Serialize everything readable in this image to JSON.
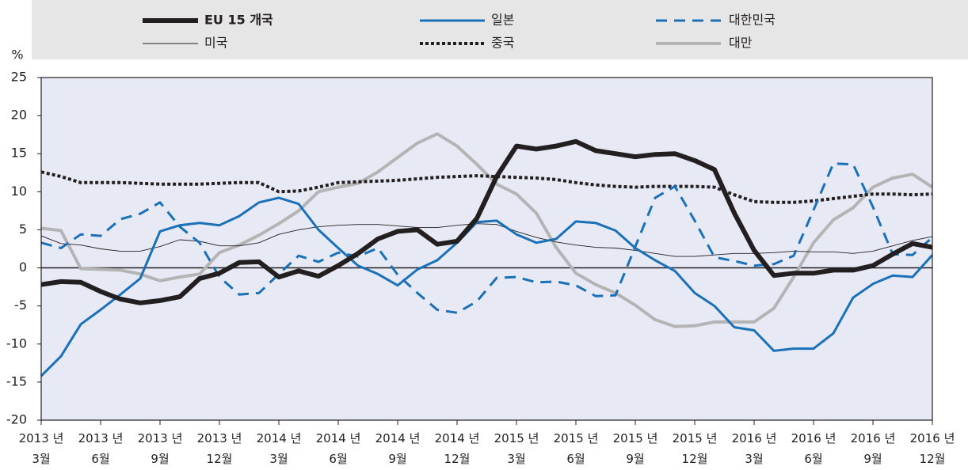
{
  "chart_data": {
    "type": "line",
    "y_unit": "%",
    "categories": [
      "2013 년\n3월",
      null,
      null,
      "2013 년\n6월",
      null,
      null,
      "2013 년\n9월",
      null,
      null,
      "2013 년\n12월",
      null,
      null,
      "2014 년\n3월",
      null,
      null,
      "2014 년\n6월",
      null,
      null,
      "2014 년\n9월",
      null,
      null,
      "2014 년\n12월",
      null,
      null,
      "2015 년\n3월",
      null,
      null,
      "2015 년\n6월",
      null,
      null,
      "2015 년\n9월",
      null,
      null,
      "2015 년\n12월",
      null,
      null,
      "2016 년\n3월",
      null,
      null,
      "2016 년\n6월",
      null,
      null,
      "2016 년\n9월",
      null,
      null,
      "2016 년\n12월"
    ],
    "series": [
      {
        "name": "EU 15 개국",
        "color": "#231f20",
        "style": "heavy",
        "values": [
          -2.2,
          -1.8,
          -1.9,
          -3.1,
          -4.1,
          -4.6,
          -4.3,
          -3.8,
          -1.4,
          -0.7,
          0.7,
          0.8,
          -1.2,
          -0.4,
          -1.1,
          0.3,
          1.9,
          3.8,
          4.8,
          5.0,
          3.1,
          3.5,
          6.5,
          12.0,
          16.0,
          15.6,
          16.0,
          16.6,
          15.4,
          15.0,
          14.6,
          14.9,
          15.0,
          14.1,
          12.9,
          7.2,
          2.3,
          -1.0,
          -0.7,
          -0.7,
          -0.3,
          -0.3,
          0.3,
          1.8,
          3.2,
          2.7
        ]
      },
      {
        "name": "일본",
        "color": "#1a71b8",
        "style": "solid",
        "values": [
          -14.2,
          -11.6,
          -7.4,
          -5.5,
          -3.5,
          -1.4,
          4.8,
          5.6,
          5.9,
          5.6,
          6.8,
          8.6,
          9.2,
          8.4,
          5.0,
          2.6,
          0.3,
          -0.8,
          -2.3,
          -0.2,
          1.0,
          3.3,
          6.0,
          6.2,
          4.4,
          3.3,
          3.8,
          6.1,
          5.9,
          4.9,
          2.6,
          1.0,
          -0.4,
          -3.3,
          -5.0,
          -7.8,
          -8.2,
          -10.9,
          -10.6,
          -10.6,
          -8.6,
          -3.9,
          -2.1,
          -1.0,
          -1.2,
          1.7
        ]
      },
      {
        "name": "대한민국",
        "color": "#1a71b8",
        "style": "dashed",
        "values": [
          3.3,
          2.6,
          4.4,
          4.2,
          6.4,
          7.1,
          8.6,
          5.4,
          3.3,
          -1.2,
          -3.5,
          -3.3,
          -0.8,
          1.6,
          0.8,
          2.0,
          1.5,
          2.6,
          -0.9,
          -3.3,
          -5.5,
          -5.9,
          -4.4,
          -1.3,
          -1.2,
          -1.9,
          -1.8,
          -2.3,
          -3.7,
          -3.6,
          2.8,
          9.2,
          10.7,
          6.2,
          1.4,
          0.9,
          0.3,
          0.5,
          1.6,
          7.6,
          13.7,
          13.6,
          8.0,
          1.8,
          1.7,
          4.0
        ]
      },
      {
        "name": "미국",
        "color": "#231f20",
        "style": "thin",
        "values": [
          4.2,
          3.2,
          3.0,
          2.5,
          2.2,
          2.2,
          2.8,
          3.7,
          3.5,
          2.9,
          2.9,
          3.3,
          4.4,
          5.0,
          5.4,
          5.6,
          5.7,
          5.7,
          5.5,
          5.3,
          5.3,
          5.6,
          5.8,
          5.7,
          4.8,
          4.0,
          3.4,
          3.0,
          2.7,
          2.6,
          2.3,
          1.9,
          1.5,
          1.5,
          1.7,
          1.9,
          1.9,
          2.0,
          2.2,
          2.1,
          2.1,
          1.9,
          2.2,
          2.9,
          3.6,
          4.1
        ]
      },
      {
        "name": "중국",
        "color": "#231f20",
        "style": "dotted",
        "values": [
          12.6,
          12.0,
          11.2,
          11.2,
          11.2,
          11.1,
          11.0,
          11.0,
          11.0,
          11.1,
          11.2,
          11.2,
          10.0,
          10.1,
          10.6,
          11.2,
          11.3,
          11.4,
          11.5,
          11.7,
          11.9,
          12.0,
          12.1,
          12.0,
          11.9,
          11.8,
          11.6,
          11.2,
          10.9,
          10.7,
          10.6,
          10.7,
          10.7,
          10.7,
          10.6,
          9.6,
          8.7,
          8.6,
          8.6,
          8.8,
          9.1,
          9.4,
          9.7,
          9.7,
          9.6,
          9.7
        ]
      },
      {
        "name": "대만",
        "color": "#b4b4b4",
        "style": "wide",
        "values": [
          5.2,
          4.9,
          -0.1,
          -0.2,
          -0.3,
          -0.8,
          -1.7,
          -1.2,
          -0.8,
          2.0,
          3.0,
          4.3,
          5.8,
          7.5,
          10.0,
          10.6,
          11.1,
          12.6,
          14.5,
          16.4,
          17.6,
          16.0,
          13.6,
          11.0,
          9.7,
          7.2,
          2.7,
          -0.7,
          -2.2,
          -3.3,
          -4.9,
          -6.8,
          -7.7,
          -7.6,
          -7.1,
          -7.1,
          -7.1,
          -5.3,
          -1.2,
          3.3,
          6.3,
          7.9,
          10.6,
          11.8,
          12.3,
          10.6
        ]
      }
    ],
    "ylim": [
      -20,
      25
    ],
    "yticks": [
      -20,
      -15,
      -10,
      -5,
      0,
      5,
      10,
      15,
      20,
      25
    ],
    "zero_line": true,
    "background": "#e7e9f5",
    "legend_background": "#e6e6e6"
  }
}
